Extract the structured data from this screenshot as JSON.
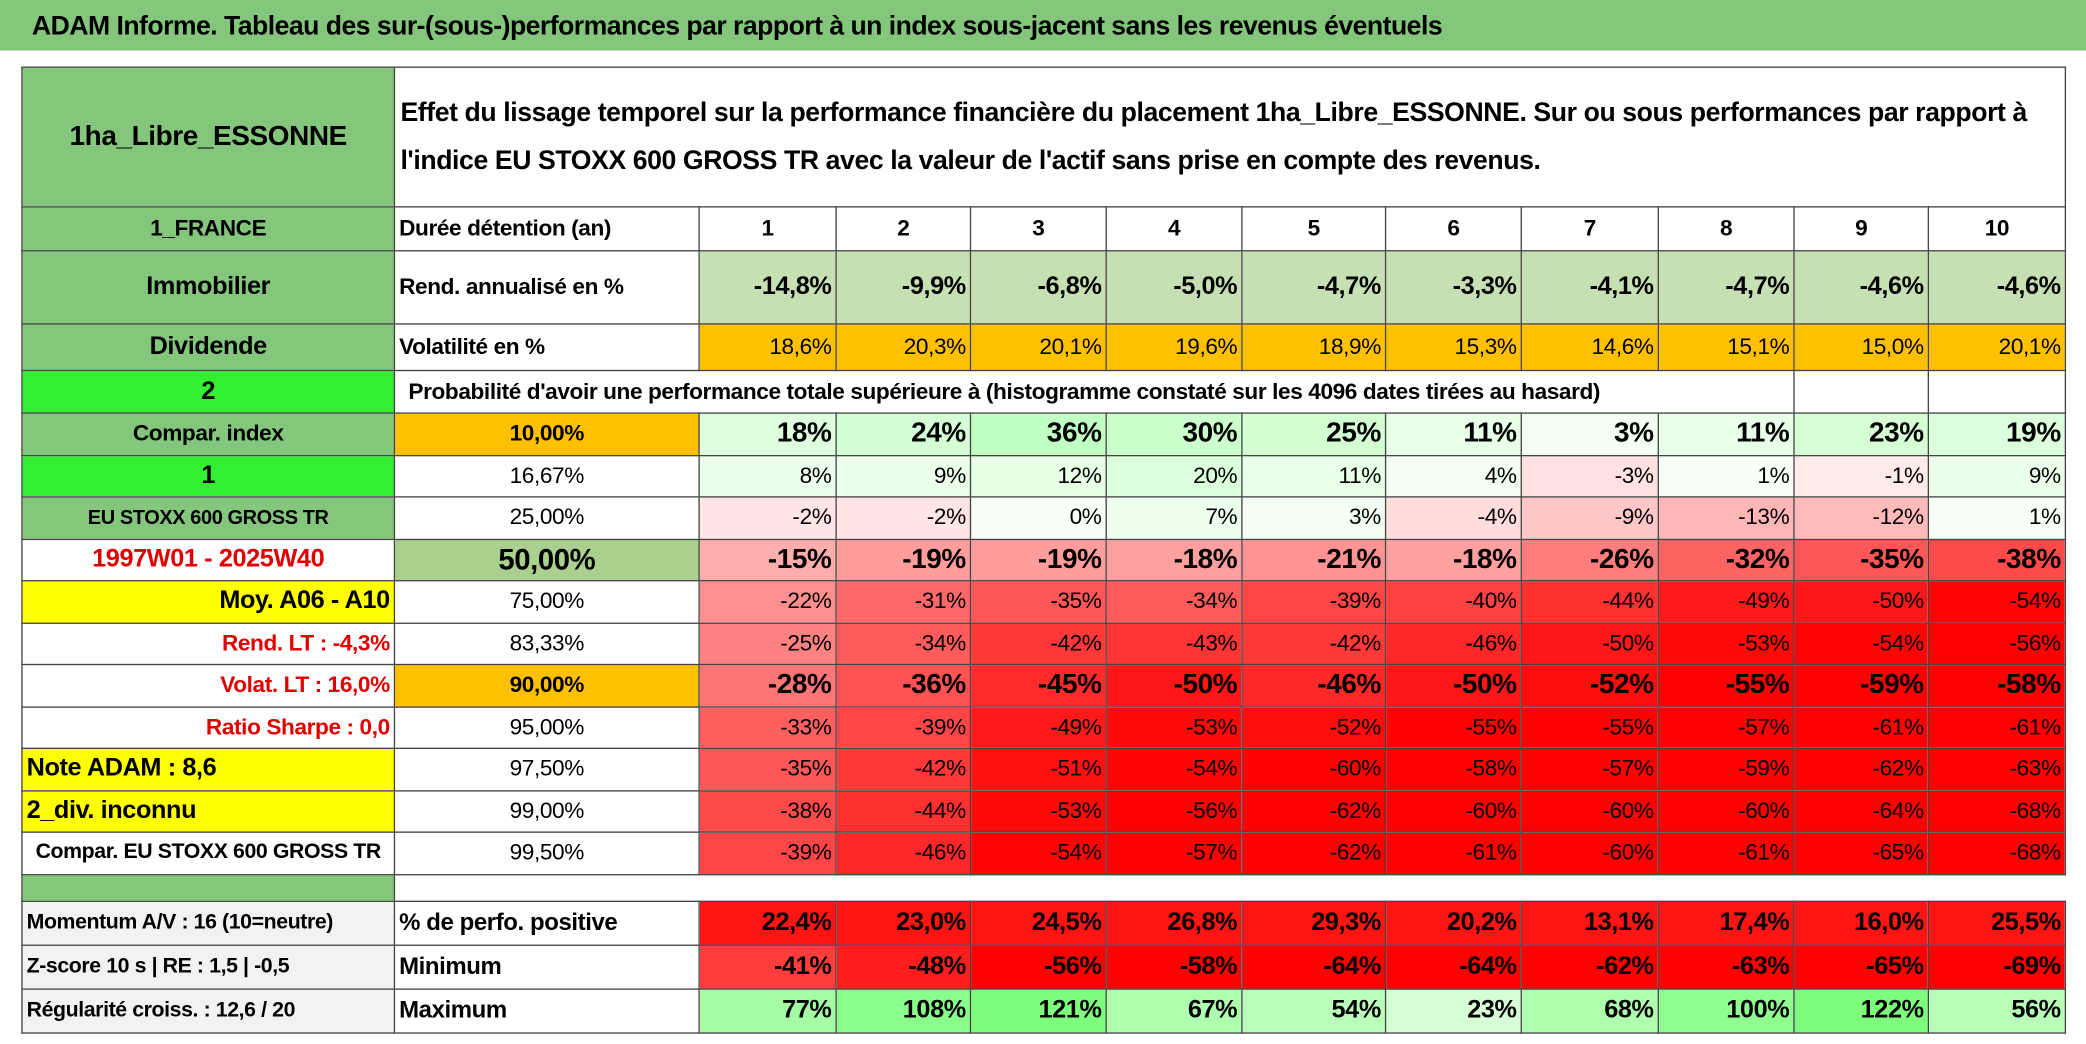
{
  "title": "ADAM Informe. Tableau des sur-(sous-)performances par rapport à un index sous-jacent sans les revenus éventuels",
  "side": [
    "1ha_Libre_ESSONNE",
    "1_FRANCE",
    "Immobilier",
    "Dividende",
    "2",
    "Compar. index",
    "1",
    "EU STOXX 600 GROSS TR",
    "1997W01 - 2025W40",
    "Moy. A06 - A10",
    "Rend. LT :   -4,3%",
    "Volat. LT :   16,0%",
    "Ratio Sharpe :    0,0",
    "Note ADAM : 8,6",
    "2_div. inconnu",
    "Compar. EU STOXX 600 GROSS TR"
  ],
  "description": "Effet du lissage temporel sur la performance financière du placement 1ha_Libre_ESSONNE. Sur ou sous performances par rapport à l'indice EU STOXX 600 GROSS TR avec la valeur de l'actif sans prise en compte des revenus.",
  "holding": {
    "label": "Durée détention (an)",
    "years": [
      "1",
      "2",
      "3",
      "4",
      "5",
      "6",
      "7",
      "8",
      "9",
      "10"
    ]
  },
  "return": {
    "label": "Rend. annualisé en %",
    "values": [
      "-14,8%",
      "-9,9%",
      "-6,8%",
      "-5,0%",
      "-4,7%",
      "-3,3%",
      "-4,1%",
      "-4,7%",
      "-4,6%",
      "-4,6%"
    ]
  },
  "volatility": {
    "label": "Volatilité en %",
    "values": [
      "18,6%",
      "20,3%",
      "20,1%",
      "19,6%",
      "18,9%",
      "15,3%",
      "14,6%",
      "15,1%",
      "15,0%",
      "20,1%"
    ]
  },
  "probability_title": "Probabilité d'avoir une performance totale supérieure à (histogramme constaté sur les 4096 dates tirées au hasard)",
  "probability_rows": [
    {
      "threshold": "10,00%",
      "values": [
        "18%",
        "24%",
        "36%",
        "30%",
        "25%",
        "11%",
        "3%",
        "11%",
        "23%",
        "19%"
      ]
    },
    {
      "threshold": "16,67%",
      "values": [
        "8%",
        "9%",
        "12%",
        "20%",
        "11%",
        "4%",
        "-3%",
        "1%",
        "-1%",
        "9%"
      ]
    },
    {
      "threshold": "25,00%",
      "values": [
        "-2%",
        "-2%",
        "0%",
        "7%",
        "3%",
        "-4%",
        "-9%",
        "-13%",
        "-12%",
        "1%"
      ]
    },
    {
      "threshold": "50,00%",
      "values": [
        "-15%",
        "-19%",
        "-19%",
        "-18%",
        "-21%",
        "-18%",
        "-26%",
        "-32%",
        "-35%",
        "-38%"
      ]
    },
    {
      "threshold": "75,00%",
      "values": [
        "-22%",
        "-31%",
        "-35%",
        "-34%",
        "-39%",
        "-40%",
        "-44%",
        "-49%",
        "-50%",
        "-54%"
      ]
    },
    {
      "threshold": "83,33%",
      "values": [
        "-25%",
        "-34%",
        "-42%",
        "-43%",
        "-42%",
        "-46%",
        "-50%",
        "-53%",
        "-54%",
        "-56%"
      ]
    },
    {
      "threshold": "90,00%",
      "values": [
        "-28%",
        "-36%",
        "-45%",
        "-50%",
        "-46%",
        "-50%",
        "-52%",
        "-55%",
        "-59%",
        "-58%"
      ]
    },
    {
      "threshold": "95,00%",
      "values": [
        "-33%",
        "-39%",
        "-49%",
        "-53%",
        "-52%",
        "-55%",
        "-55%",
        "-57%",
        "-61%",
        "-61%"
      ]
    },
    {
      "threshold": "97,50%",
      "values": [
        "-35%",
        "-42%",
        "-51%",
        "-54%",
        "-60%",
        "-58%",
        "-57%",
        "-59%",
        "-62%",
        "-63%"
      ]
    },
    {
      "threshold": "99,00%",
      "values": [
        "-38%",
        "-44%",
        "-53%",
        "-56%",
        "-62%",
        "-60%",
        "-60%",
        "-60%",
        "-64%",
        "-68%"
      ]
    },
    {
      "threshold": "99,50%",
      "values": [
        "-39%",
        "-46%",
        "-54%",
        "-57%",
        "-62%",
        "-61%",
        "-60%",
        "-61%",
        "-65%",
        "-68%"
      ]
    }
  ],
  "stats_side": [
    "Momentum A/V : 16 (10=neutre)",
    "Z-score 10 s | RE : 1,5 | -0,5",
    "Régularité croiss. : 12,6 / 20"
  ],
  "stats": [
    {
      "label": "% de perfo. positive",
      "values": [
        "22,4%",
        "23,0%",
        "24,5%",
        "26,8%",
        "29,3%",
        "20,2%",
        "13,1%",
        "17,4%",
        "16,0%",
        "25,5%"
      ]
    },
    {
      "label": "Minimum",
      "values": [
        "-41%",
        "-48%",
        "-56%",
        "-58%",
        "-64%",
        "-64%",
        "-62%",
        "-63%",
        "-65%",
        "-69%"
      ]
    },
    {
      "label": "Maximum",
      "values": [
        "77%",
        "108%",
        "121%",
        "67%",
        "54%",
        "23%",
        "68%",
        "100%",
        "122%",
        "56%"
      ]
    }
  ]
}
